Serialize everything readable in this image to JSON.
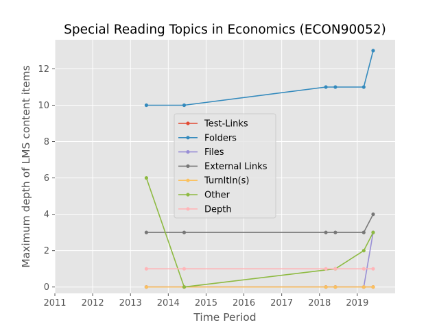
{
  "chart_data": {
    "type": "line",
    "title": "Special Reading Topics in Economics (ECON90052)",
    "xlabel": "Time Period",
    "ylabel": "Maximum depth of LMS content items",
    "xlim": [
      2011,
      2020.0
    ],
    "ylim": [
      -0.35,
      13.6
    ],
    "x_ticks": [
      2011,
      2012,
      2013,
      2014,
      2015,
      2016,
      2017,
      2018,
      2019
    ],
    "y_ticks": [
      0,
      2,
      4,
      6,
      8,
      10,
      12
    ],
    "grid": true,
    "legend_position": "center",
    "series": [
      {
        "name": "Test-Links",
        "color": "#E24A33",
        "x": [
          2013.42,
          2014.42,
          2018.17,
          2018.42,
          2019.17,
          2019.42
        ],
        "y": [
          0,
          0,
          0,
          0,
          0,
          0
        ]
      },
      {
        "name": "Folders",
        "color": "#348ABD",
        "x": [
          2013.42,
          2014.42,
          2018.17,
          2018.42,
          2019.17,
          2019.42
        ],
        "y": [
          10,
          10,
          11,
          11,
          11,
          13
        ]
      },
      {
        "name": "Files",
        "color": "#988ED5",
        "x": [
          2013.42,
          2014.42,
          2018.17,
          2018.42,
          2019.17,
          2019.42
        ],
        "y": [
          0,
          0,
          0,
          0,
          0,
          3
        ]
      },
      {
        "name": "External Links",
        "color": "#777777",
        "x": [
          2013.42,
          2014.42,
          2018.17,
          2018.42,
          2019.17,
          2019.42
        ],
        "y": [
          3,
          3,
          3,
          3,
          3,
          4
        ]
      },
      {
        "name": "TurnItIn(s)",
        "color": "#FBC15E",
        "x": [
          2013.42,
          2014.42,
          2018.17,
          2018.42,
          2019.17,
          2019.42
        ],
        "y": [
          0,
          0,
          0,
          0,
          0,
          0
        ]
      },
      {
        "name": "Other",
        "color": "#8EBA42",
        "x": [
          2013.42,
          2014.42,
          2018.42,
          2019.17,
          2019.42
        ],
        "y": [
          6,
          0,
          1,
          2,
          3
        ]
      },
      {
        "name": "Depth",
        "color": "#FFB5B8",
        "x": [
          2013.42,
          2014.42,
          2018.17,
          2018.42,
          2019.17,
          2019.42
        ],
        "y": [
          1,
          1,
          1,
          1,
          1,
          1
        ]
      }
    ]
  }
}
